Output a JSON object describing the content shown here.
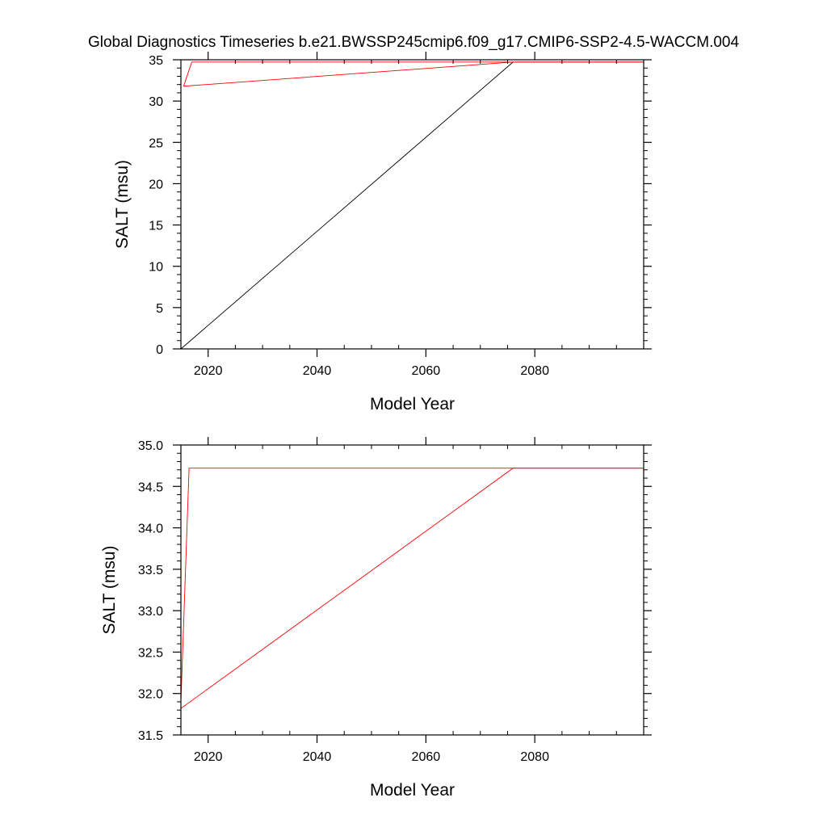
{
  "figure": {
    "title": "Global Diagnostics Timeseries b.e21.BWSSP245cmip6.f09_g17.CMIP6-SSP2-4.5-WACCM.004"
  },
  "colors": {
    "axis": "#000000",
    "series_black": "#000000",
    "series_red": "#ff0000"
  },
  "chart_data": [
    {
      "type": "line",
      "title": "",
      "xlabel": "Model Year",
      "ylabel": "SALT (msu)",
      "xlim": [
        2015,
        2100
      ],
      "ylim": [
        0,
        35
      ],
      "x_ticks": [
        2020,
        2040,
        2060,
        2080
      ],
      "y_ticks": [
        0,
        5,
        10,
        15,
        20,
        25,
        30,
        35
      ],
      "y_tick_labels": [
        "0",
        "5",
        "10",
        "15",
        "20",
        "25",
        "30",
        "35"
      ],
      "grid": false,
      "legend": "none",
      "series": [
        {
          "color": "#000000",
          "x": [
            2015,
            2076,
            2100
          ],
          "y": [
            0,
            34.72,
            34.72
          ]
        },
        {
          "color": "#ff0000",
          "x": [
            2100,
            2017,
            2015.5,
            2076,
            2100
          ],
          "y": [
            34.72,
            34.72,
            31.8,
            34.72,
            34.72
          ]
        }
      ]
    },
    {
      "type": "line",
      "title": "",
      "xlabel": "Model Year",
      "ylabel": "SALT (msu)",
      "xlim": [
        2015,
        2100
      ],
      "ylim": [
        31.5,
        35.0
      ],
      "x_ticks": [
        2020,
        2040,
        2060,
        2080
      ],
      "y_ticks": [
        31.5,
        32.0,
        32.5,
        33.0,
        33.5,
        34.0,
        34.5,
        35.0
      ],
      "y_tick_labels": [
        "31.5",
        "32.0",
        "32.5",
        "33.0",
        "33.5",
        "34.0",
        "34.5",
        "35.0"
      ],
      "grid": false,
      "legend": "none",
      "series": [
        {
          "color": "#ff0000",
          "x": [
            2015,
            2016.5,
            2100
          ],
          "y": [
            31.9,
            34.72,
            34.72
          ]
        },
        {
          "color": "#ff0000",
          "x": [
            2015,
            2076,
            2100
          ],
          "y": [
            31.82,
            34.72,
            34.72
          ]
        }
      ]
    }
  ]
}
